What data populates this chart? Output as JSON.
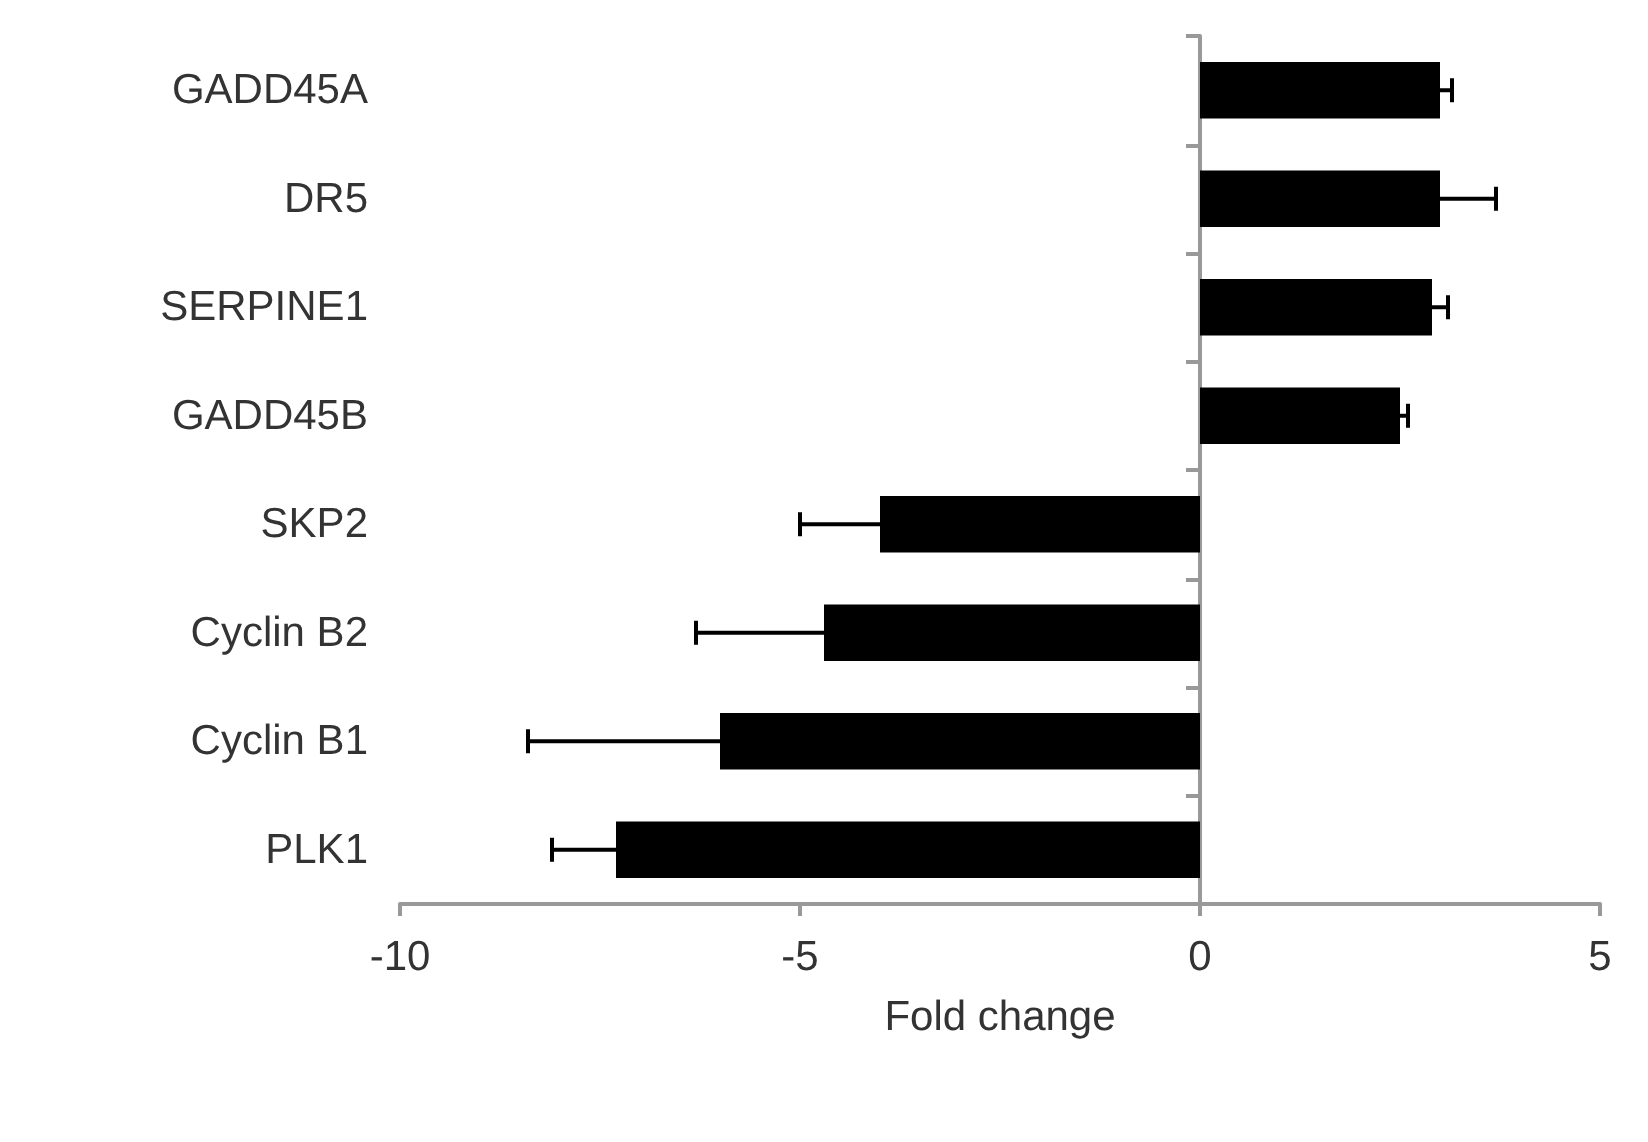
{
  "chart_data": {
    "type": "bar",
    "orientation": "horizontal",
    "xlabel": "Fold change",
    "categories": [
      "GADD45A",
      "DR5",
      "SERPINE1",
      "GADD45B",
      "SKP2",
      "Cyclin B2",
      "Cyclin B1",
      "PLK1"
    ],
    "values": [
      3.0,
      3.0,
      2.9,
      2.5,
      -4.0,
      -4.7,
      -6.0,
      -7.3
    ],
    "errors": [
      0.15,
      0.7,
      0.2,
      0.1,
      1.0,
      1.6,
      2.4,
      0.8
    ],
    "color": "#000000",
    "xlim": [
      -10,
      5
    ],
    "xticks": [
      -10,
      -5,
      0,
      5
    ]
  }
}
